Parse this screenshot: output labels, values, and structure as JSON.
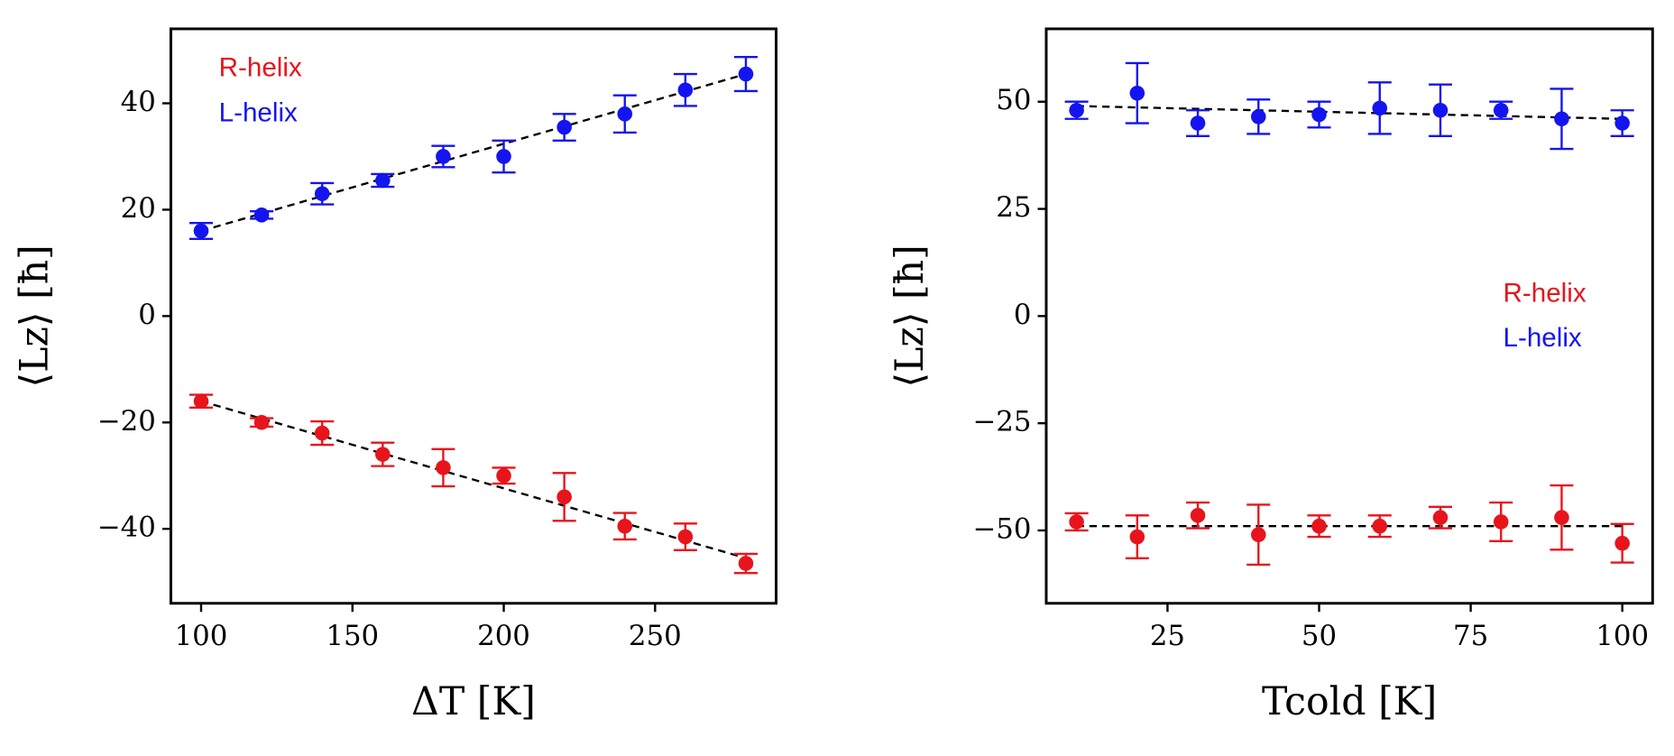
{
  "chart_data": [
    {
      "type": "scatter",
      "x_label": "ΔT [K]",
      "y_label": "⟨Lz⟩ [ħ]",
      "x": [
        100,
        120,
        140,
        160,
        180,
        200,
        220,
        240,
        260,
        280
      ],
      "xlim": [
        90,
        290
      ],
      "xticks": [
        100,
        150,
        200,
        250
      ],
      "ylim": [
        -54,
        54
      ],
      "yticks": [
        {
          "value": -40,
          "label": "−40"
        },
        {
          "value": -20,
          "label": "−20"
        },
        0,
        20,
        40
      ],
      "legend": "upper left",
      "series": [
        {
          "name": "R-helix",
          "color": "#e8141c",
          "values": [
            -16,
            -20,
            -22,
            -26,
            -28.5,
            -30,
            -34,
            -39.5,
            -41.5,
            -46.5
          ],
          "errors": [
            1.2,
            0.8,
            2.2,
            2.2,
            3.5,
            1.5,
            4.5,
            2.5,
            2.5,
            1.8
          ],
          "fit": [
            -16,
            -45.5
          ]
        },
        {
          "name": "L-helix",
          "color": "#1414f0",
          "values": [
            16,
            19,
            23,
            25.5,
            30,
            30,
            35.5,
            38,
            42.5,
            45.5
          ],
          "errors": [
            1.5,
            0.7,
            2,
            1.2,
            2,
            3,
            2.5,
            3.5,
            3,
            3.2
          ],
          "fit": [
            16,
            45.5
          ]
        }
      ]
    },
    {
      "type": "scatter",
      "x_label": "Tcold [K]",
      "y_label": "⟨Lz⟩ [ħ]",
      "x": [
        10,
        20,
        30,
        40,
        50,
        60,
        70,
        80,
        90,
        100
      ],
      "xlim": [
        5,
        105
      ],
      "xticks": [
        25,
        50,
        75,
        100
      ],
      "ylim": [
        -67,
        67
      ],
      "yticks": [
        {
          "value": -50,
          "label": "−50"
        },
        {
          "value": -25,
          "label": "−25"
        },
        0,
        25,
        50
      ],
      "legend": "center right",
      "series": [
        {
          "name": "R-helix",
          "color": "#e8141c",
          "values": [
            -48,
            -51.5,
            -46.5,
            -51,
            -49,
            -49,
            -47,
            -48,
            -47,
            -53
          ],
          "errors": [
            2,
            5,
            3,
            7,
            2.5,
            2.5,
            2.5,
            4.5,
            7.5,
            4.5
          ],
          "fit": [
            -49,
            -49
          ]
        },
        {
          "name": "L-helix",
          "color": "#1414f0",
          "values": [
            48,
            52,
            45,
            46.5,
            47,
            48.5,
            48,
            48,
            46,
            45
          ],
          "errors": [
            2,
            7,
            3,
            4,
            3,
            6,
            6,
            2,
            7,
            3
          ],
          "fit": [
            49,
            46
          ]
        }
      ]
    }
  ]
}
